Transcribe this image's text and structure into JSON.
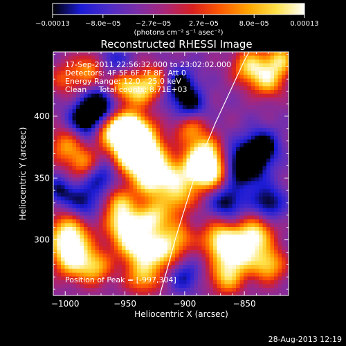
{
  "chart_data": {
    "type": "heatmap",
    "title": "Reconstructed RHESSI Image",
    "xlabel": "Heliocentric X (arcsec)",
    "ylabel": "Heliocentric Y (arcsec)",
    "xlim": [
      -1010,
      -813
    ],
    "ylim": [
      255,
      452
    ],
    "xticks": [
      -1000,
      -950,
      -900,
      -850
    ],
    "xtick_labels": [
      "−1000",
      "−950",
      "−900",
      "−850"
    ],
    "yticks": [
      300,
      350,
      400
    ],
    "ytick_labels": [
      "300",
      "350",
      "400"
    ],
    "colorbar": {
      "min": -0.00013,
      "max": 0.00013,
      "tick_labels": [
        "−0.00013",
        "−8.0e−05",
        "−2.7e−05",
        "2.7e−05",
        "8.0e−05",
        "0.00013"
      ],
      "unit_label": "(photons cm⁻² s⁻¹ asec⁻²)",
      "colormap": [
        "#000000",
        "#1b1bd6",
        "#4c2cc8",
        "#7a2ea8",
        "#a8267a",
        "#d82020",
        "#ff5a00",
        "#ffa500",
        "#ffe24a",
        "#ffffff"
      ]
    },
    "annotations": [
      "17-Sep-2011 22:56:32.000 to 23:02:02.000",
      "Detectors: 4F 5F 6F 7F 8F, Att 0",
      "Energy Range: 12.0 - 25.0 keV",
      "Clean     Total counts: 8.71E+03"
    ],
    "peak_label": "Position of Peak = [-997,304]",
    "limb_curve": [
      [
        -921,
        255
      ],
      [
        -915,
        275
      ],
      [
        -908,
        300
      ],
      [
        -900,
        325
      ],
      [
        -892,
        350
      ],
      [
        -884,
        372
      ],
      [
        -874,
        395
      ],
      [
        -862,
        420
      ],
      [
        -850,
        445
      ],
      [
        -846,
        452
      ]
    ],
    "sources": [
      {
        "x": -960,
        "y": 388,
        "amp": 1.0,
        "r": 10
      },
      {
        "x": -945,
        "y": 392,
        "amp": 0.9,
        "r": 9
      },
      {
        "x": -935,
        "y": 382,
        "amp": 0.95,
        "r": 10
      },
      {
        "x": -948,
        "y": 372,
        "amp": 0.9,
        "r": 9
      },
      {
        "x": -940,
        "y": 360,
        "amp": 0.8,
        "r": 10
      },
      {
        "x": -925,
        "y": 368,
        "amp": 0.7,
        "r": 9
      },
      {
        "x": -915,
        "y": 352,
        "amp": 0.75,
        "r": 9
      },
      {
        "x": -930,
        "y": 345,
        "amp": 0.7,
        "r": 9
      },
      {
        "x": -890,
        "y": 358,
        "amp": 1.0,
        "r": 11
      },
      {
        "x": -877,
        "y": 355,
        "amp": 0.85,
        "r": 10
      },
      {
        "x": -882,
        "y": 372,
        "amp": 0.7,
        "r": 9
      },
      {
        "x": -905,
        "y": 335,
        "amp": 0.7,
        "r": 10
      },
      {
        "x": -895,
        "y": 390,
        "amp": 0.6,
        "r": 9
      },
      {
        "x": -940,
        "y": 420,
        "amp": 0.75,
        "r": 9
      },
      {
        "x": -925,
        "y": 428,
        "amp": 0.7,
        "r": 9
      },
      {
        "x": -955,
        "y": 425,
        "amp": 0.55,
        "r": 8
      },
      {
        "x": -1000,
        "y": 376,
        "amp": 0.6,
        "r": 10
      },
      {
        "x": -985,
        "y": 362,
        "amp": 0.55,
        "r": 9
      },
      {
        "x": -997,
        "y": 304,
        "amp": 1.0,
        "r": 12
      },
      {
        "x": -995,
        "y": 285,
        "amp": 0.85,
        "r": 11
      },
      {
        "x": -975,
        "y": 278,
        "amp": 0.7,
        "r": 10
      },
      {
        "x": -950,
        "y": 312,
        "amp": 0.95,
        "r": 11
      },
      {
        "x": -940,
        "y": 295,
        "amp": 0.9,
        "r": 11
      },
      {
        "x": -925,
        "y": 318,
        "amp": 0.85,
        "r": 10
      },
      {
        "x": -920,
        "y": 290,
        "amp": 0.85,
        "r": 10
      },
      {
        "x": -905,
        "y": 302,
        "amp": 0.6,
        "r": 9
      },
      {
        "x": -935,
        "y": 270,
        "amp": 0.7,
        "r": 10
      },
      {
        "x": -955,
        "y": 330,
        "amp": 0.6,
        "r": 9
      },
      {
        "x": -870,
        "y": 300,
        "amp": 0.9,
        "r": 11
      },
      {
        "x": -855,
        "y": 290,
        "amp": 0.95,
        "r": 11
      },
      {
        "x": -840,
        "y": 305,
        "amp": 0.85,
        "r": 10
      },
      {
        "x": -865,
        "y": 270,
        "amp": 0.75,
        "r": 10
      },
      {
        "x": -830,
        "y": 280,
        "amp": 0.8,
        "r": 10
      },
      {
        "x": -845,
        "y": 440,
        "amp": 0.85,
        "r": 10
      },
      {
        "x": -830,
        "y": 428,
        "amp": 0.7,
        "r": 9
      },
      {
        "x": -820,
        "y": 445,
        "amp": 0.8,
        "r": 9
      },
      {
        "x": -980,
        "y": 438,
        "amp": 0.6,
        "r": 9
      },
      {
        "x": -1000,
        "y": 430,
        "amp": 0.45,
        "r": 9
      },
      {
        "x": -982,
        "y": 398,
        "amp": -0.9,
        "r": 10
      },
      {
        "x": -970,
        "y": 410,
        "amp": -0.7,
        "r": 9
      },
      {
        "x": -850,
        "y": 360,
        "amp": -0.9,
        "r": 12
      },
      {
        "x": -835,
        "y": 375,
        "amp": -0.7,
        "r": 10
      },
      {
        "x": -865,
        "y": 330,
        "amp": -0.6,
        "r": 10
      },
      {
        "x": -905,
        "y": 425,
        "amp": -0.7,
        "r": 10
      },
      {
        "x": -895,
        "y": 408,
        "amp": -0.55,
        "r": 9
      },
      {
        "x": -985,
        "y": 330,
        "amp": -0.55,
        "r": 10
      },
      {
        "x": -1005,
        "y": 340,
        "amp": -0.5,
        "r": 8
      },
      {
        "x": -970,
        "y": 350,
        "amp": -0.5,
        "r": 9
      },
      {
        "x": -830,
        "y": 330,
        "amp": -0.6,
        "r": 10
      },
      {
        "x": -900,
        "y": 270,
        "amp": -0.45,
        "r": 9
      },
      {
        "x": -960,
        "y": 445,
        "amp": -0.4,
        "r": 9
      }
    ]
  },
  "footer": {
    "timestamp": "28-Aug-2013 12:19"
  }
}
